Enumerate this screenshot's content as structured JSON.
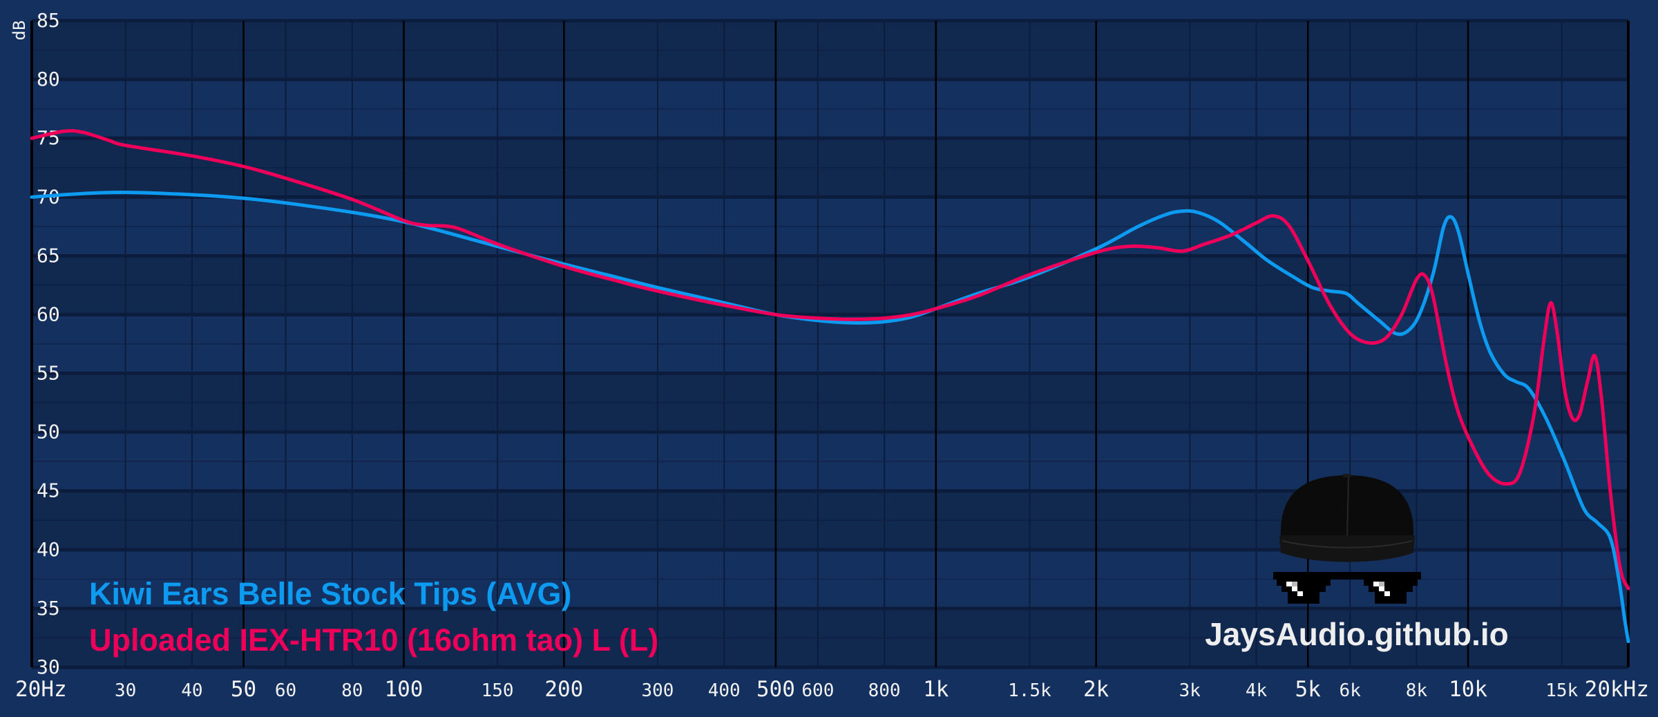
{
  "chart_data": {
    "type": "line",
    "xscale": "log",
    "xlim": [
      20,
      20000
    ],
    "ylim": [
      30,
      85
    ],
    "grid": true,
    "ylabel": "dB",
    "xlabel": "",
    "x_ticks": [
      {
        "v": 20,
        "label": "20Hz",
        "major": true
      },
      {
        "v": 30,
        "label": "30",
        "major": false
      },
      {
        "v": 40,
        "label": "40",
        "major": false
      },
      {
        "v": 50,
        "label": "50",
        "major": true
      },
      {
        "v": 60,
        "label": "60",
        "major": false
      },
      {
        "v": 80,
        "label": "80",
        "major": false
      },
      {
        "v": 100,
        "label": "100",
        "major": true
      },
      {
        "v": 150,
        "label": "150",
        "major": false
      },
      {
        "v": 200,
        "label": "200",
        "major": true
      },
      {
        "v": 300,
        "label": "300",
        "major": false
      },
      {
        "v": 400,
        "label": "400",
        "major": false
      },
      {
        "v": 500,
        "label": "500",
        "major": true
      },
      {
        "v": 600,
        "label": "600",
        "major": false
      },
      {
        "v": 800,
        "label": "800",
        "major": false
      },
      {
        "v": 1000,
        "label": "1k",
        "major": true
      },
      {
        "v": 1500,
        "label": "1.5k",
        "major": false
      },
      {
        "v": 2000,
        "label": "2k",
        "major": true
      },
      {
        "v": 3000,
        "label": "3k",
        "major": false
      },
      {
        "v": 4000,
        "label": "4k",
        "major": false
      },
      {
        "v": 5000,
        "label": "5k",
        "major": true
      },
      {
        "v": 6000,
        "label": "6k",
        "major": false
      },
      {
        "v": 8000,
        "label": "8k",
        "major": false
      },
      {
        "v": 10000,
        "label": "10k",
        "major": true
      },
      {
        "v": 15000,
        "label": "15k",
        "major": false
      },
      {
        "v": 20000,
        "label": "20kHz",
        "major": true
      }
    ],
    "y_ticks": [
      30,
      35,
      40,
      45,
      50,
      55,
      60,
      65,
      70,
      75,
      80,
      85
    ],
    "legend_position": "bottom-left",
    "series": [
      {
        "name": "Kiwi Ears Belle Stock Tips (AVG)",
        "color": "#0d9bf2",
        "points": [
          [
            20,
            70.0
          ],
          [
            25,
            70.3
          ],
          [
            30,
            70.4
          ],
          [
            40,
            70.2
          ],
          [
            50,
            69.9
          ],
          [
            60,
            69.5
          ],
          [
            80,
            68.7
          ],
          [
            100,
            67.9
          ],
          [
            120,
            67.0
          ],
          [
            150,
            65.8
          ],
          [
            200,
            64.3
          ],
          [
            250,
            63.2
          ],
          [
            300,
            62.3
          ],
          [
            400,
            61.0
          ],
          [
            500,
            60.0
          ],
          [
            600,
            59.5
          ],
          [
            700,
            59.3
          ],
          [
            800,
            59.4
          ],
          [
            900,
            59.8
          ],
          [
            1000,
            60.5
          ],
          [
            1200,
            61.8
          ],
          [
            1500,
            63.2
          ],
          [
            2000,
            65.6
          ],
          [
            2400,
            67.5
          ],
          [
            2700,
            68.5
          ],
          [
            2900,
            68.8
          ],
          [
            3100,
            68.7
          ],
          [
            3400,
            67.9
          ],
          [
            3800,
            66.2
          ],
          [
            4200,
            64.6
          ],
          [
            4700,
            63.2
          ],
          [
            5100,
            62.3
          ],
          [
            5500,
            62.0
          ],
          [
            5900,
            61.8
          ],
          [
            6200,
            61.0
          ],
          [
            6800,
            59.5
          ],
          [
            7300,
            58.4
          ],
          [
            7700,
            58.6
          ],
          [
            8100,
            60.0
          ],
          [
            8600,
            63.5
          ],
          [
            9000,
            67.5
          ],
          [
            9300,
            68.3
          ],
          [
            9600,
            67.0
          ],
          [
            10000,
            63.5
          ],
          [
            10500,
            59.5
          ],
          [
            11000,
            56.8
          ],
          [
            11700,
            54.9
          ],
          [
            12300,
            54.3
          ],
          [
            13000,
            53.7
          ],
          [
            14000,
            51.2
          ],
          [
            15200,
            47.5
          ],
          [
            16500,
            43.5
          ],
          [
            17500,
            42.3
          ],
          [
            18500,
            41.0
          ],
          [
            19200,
            37.5
          ],
          [
            19700,
            34.0
          ],
          [
            20000,
            32.2
          ]
        ]
      },
      {
        "name": "Uploaded IEX-HTR10 (16ohm tao) L (L)",
        "color": "#ee005a",
        "points": [
          [
            20,
            75.0
          ],
          [
            23,
            75.6
          ],
          [
            25,
            75.5
          ],
          [
            28,
            74.8
          ],
          [
            30,
            74.4
          ],
          [
            40,
            73.5
          ],
          [
            50,
            72.6
          ],
          [
            60,
            71.6
          ],
          [
            80,
            69.8
          ],
          [
            100,
            68.0
          ],
          [
            110,
            67.6
          ],
          [
            125,
            67.4
          ],
          [
            150,
            66.0
          ],
          [
            200,
            64.1
          ],
          [
            250,
            62.9
          ],
          [
            300,
            62.0
          ],
          [
            400,
            60.8
          ],
          [
            500,
            60.0
          ],
          [
            600,
            59.7
          ],
          [
            700,
            59.6
          ],
          [
            800,
            59.7
          ],
          [
            900,
            60.0
          ],
          [
            1000,
            60.5
          ],
          [
            1200,
            61.6
          ],
          [
            1500,
            63.4
          ],
          [
            2000,
            65.3
          ],
          [
            2300,
            65.8
          ],
          [
            2600,
            65.7
          ],
          [
            2900,
            65.4
          ],
          [
            3200,
            66.0
          ],
          [
            3600,
            66.8
          ],
          [
            4000,
            67.8
          ],
          [
            4300,
            68.4
          ],
          [
            4600,
            67.6
          ],
          [
            5000,
            64.6
          ],
          [
            5500,
            60.8
          ],
          [
            6000,
            58.4
          ],
          [
            6500,
            57.6
          ],
          [
            7000,
            58.0
          ],
          [
            7500,
            60.0
          ],
          [
            8000,
            63.0
          ],
          [
            8300,
            63.3
          ],
          [
            8600,
            61.5
          ],
          [
            9100,
            55.8
          ],
          [
            9600,
            51.6
          ],
          [
            10300,
            48.4
          ],
          [
            11000,
            46.3
          ],
          [
            11800,
            45.6
          ],
          [
            12500,
            46.5
          ],
          [
            13300,
            51.5
          ],
          [
            13900,
            58.0
          ],
          [
            14300,
            61.0
          ],
          [
            14700,
            58.5
          ],
          [
            15200,
            53.5
          ],
          [
            15700,
            51.2
          ],
          [
            16200,
            51.5
          ],
          [
            16800,
            54.5
          ],
          [
            17300,
            56.5
          ],
          [
            17800,
            53.0
          ],
          [
            18500,
            45.0
          ],
          [
            19300,
            38.5
          ],
          [
            20000,
            36.7
          ]
        ]
      }
    ]
  },
  "legend": {
    "items": [
      {
        "label": "Kiwi Ears Belle Stock Tips (AVG)",
        "color": "#0d9bf2"
      },
      {
        "label": "Uploaded IEX-HTR10 (16ohm tao) L (L)",
        "color": "#ee005a"
      }
    ]
  },
  "watermark": {
    "text": "JaysAudio.github.io",
    "icon": "cap-and-pixel-sunglasses-icon"
  },
  "colors": {
    "background": "#14305f",
    "grid_band_dark": "#11284f",
    "grid_line": "#0c1c3c",
    "major_line": "#000000",
    "label": "#f2f2f2"
  }
}
